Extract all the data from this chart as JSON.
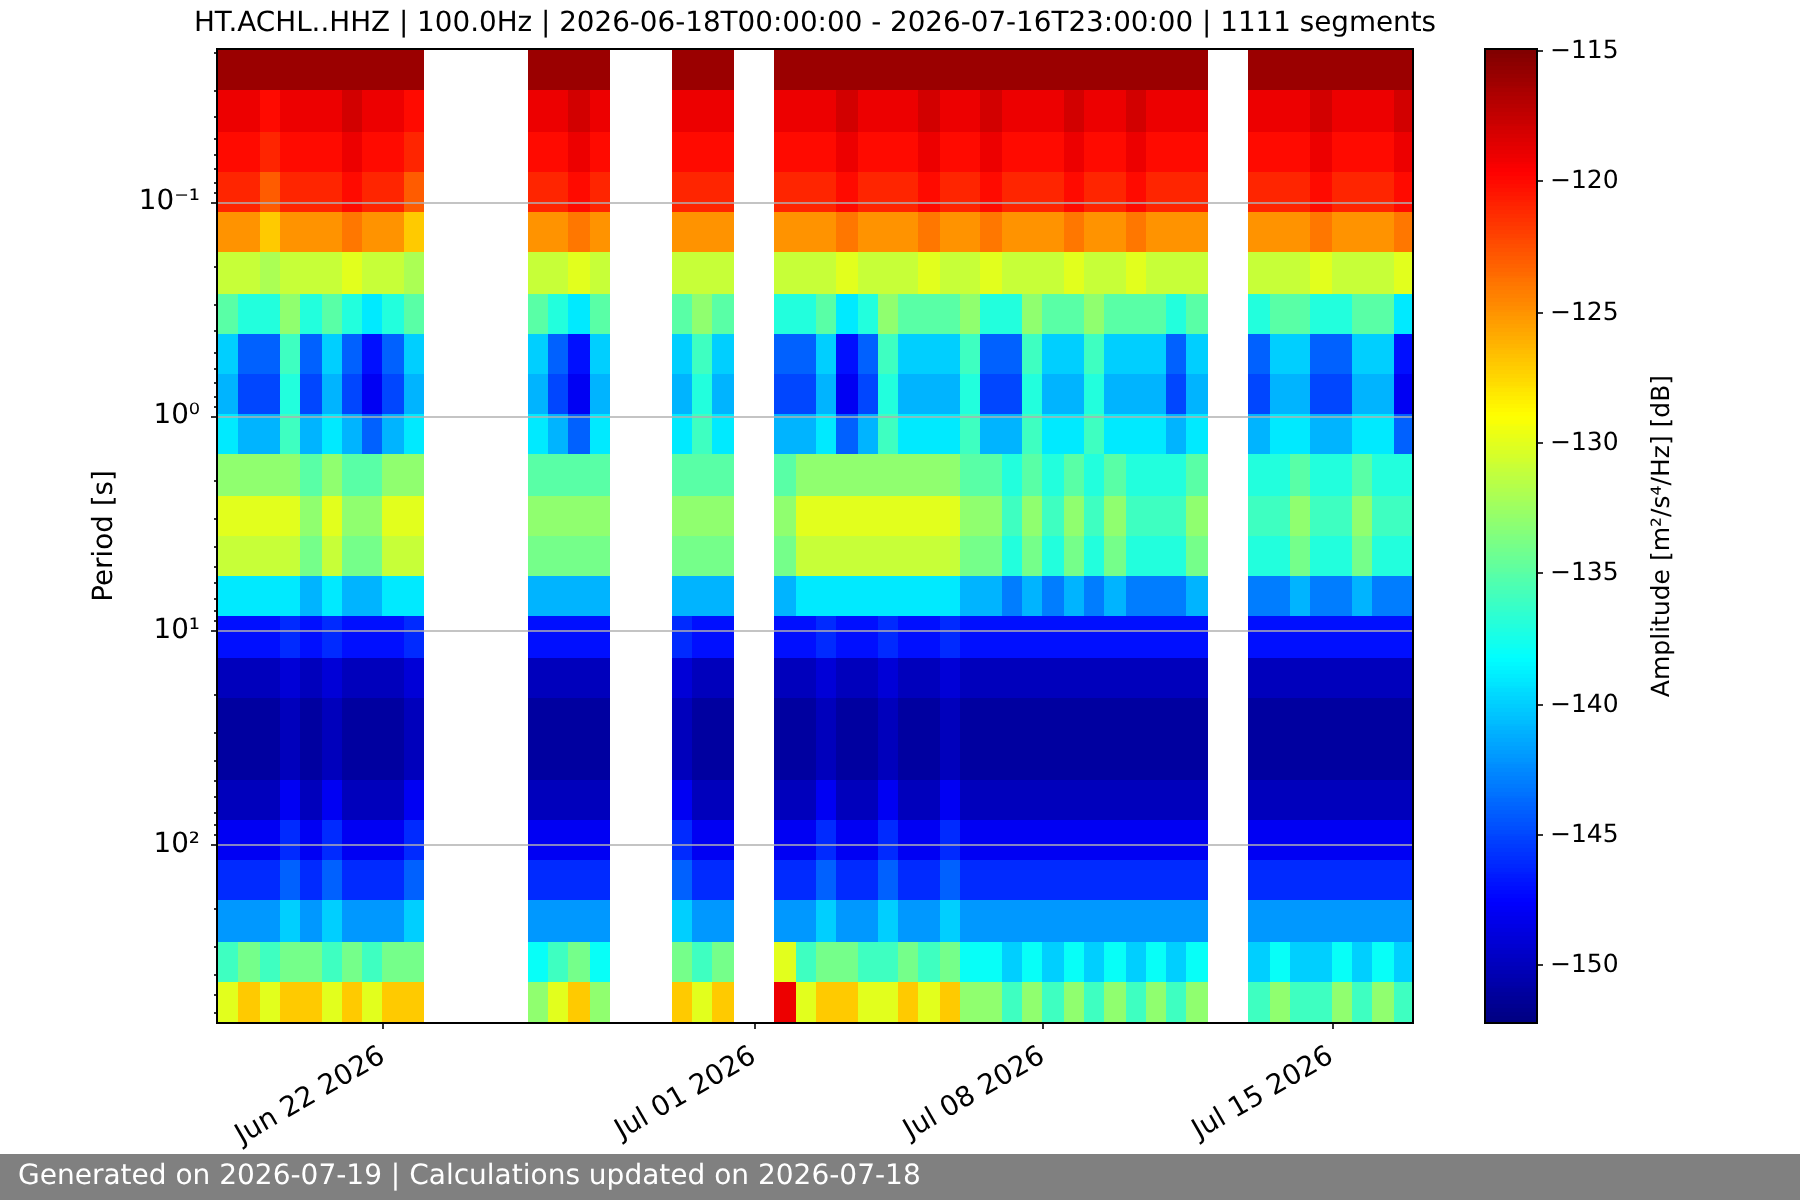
{
  "chart_data": {
    "type": "heatmap",
    "title": "HT.ACHL..HHZ | 100.0Hz | 2026-06-18T00:00:00 - 2026-07-16T23:00:00 | 1111 segments",
    "ylabel": "Period [s]",
    "clabel": "Amplitude [m²/s⁴/Hz] [dB]",
    "annotations": [
      "Generated on 2026-07-19 | Calculations updated on 2026-07-18"
    ],
    "x": [
      "2026-06-18T06:00",
      "2026-06-18T18:00",
      "2026-06-19T06:00",
      "2026-06-19T18:00",
      "2026-06-20T06:00",
      "2026-06-20T18:00",
      "2026-06-21T06:00",
      "2026-06-21T18:00",
      "2026-06-22T06:00",
      "2026-06-22T18:00",
      "2026-06-23T06:00",
      "2026-06-23T18:00",
      "2026-06-24T06:00",
      "2026-06-24T18:00",
      "2026-06-25T06:00",
      "2026-06-25T18:00",
      "2026-06-26T06:00",
      "2026-06-26T18:00",
      "2026-06-27T06:00",
      "2026-06-27T18:00",
      "2026-06-28T06:00",
      "2026-06-28T18:00",
      "2026-06-29T06:00",
      "2026-06-29T18:00",
      "2026-06-30T06:00",
      "2026-06-30T18:00",
      "2026-07-01T06:00",
      "2026-07-01T18:00",
      "2026-07-02T06:00",
      "2026-07-02T18:00",
      "2026-07-03T06:00",
      "2026-07-03T18:00",
      "2026-07-04T06:00",
      "2026-07-04T18:00",
      "2026-07-05T06:00",
      "2026-07-05T18:00",
      "2026-07-06T06:00",
      "2026-07-06T18:00",
      "2026-07-07T06:00",
      "2026-07-07T18:00",
      "2026-07-08T06:00",
      "2026-07-08T18:00",
      "2026-07-09T06:00",
      "2026-07-09T18:00",
      "2026-07-10T06:00",
      "2026-07-10T18:00",
      "2026-07-11T06:00",
      "2026-07-11T18:00",
      "2026-07-12T06:00",
      "2026-07-12T18:00",
      "2026-07-13T06:00",
      "2026-07-13T18:00",
      "2026-07-14T06:00",
      "2026-07-14T18:00",
      "2026-07-15T06:00",
      "2026-07-15T18:00",
      "2026-07-16T06:00",
      "2026-07-16T18:00"
    ],
    "cells": [
      [
        -116,
        -116,
        -116,
        -116,
        -116,
        -116,
        -116,
        -116,
        -116,
        -116,
        null,
        null,
        null,
        null,
        null,
        -116,
        -116,
        -116,
        -116,
        null,
        null,
        null,
        -116,
        -116,
        -116,
        null,
        null,
        -116,
        -116,
        -116,
        -116,
        -116,
        -116,
        -116,
        -116,
        -116,
        -116,
        -116,
        -116,
        -116,
        -116,
        -116,
        -116,
        -116,
        -116,
        -116,
        -116,
        -116,
        null,
        null,
        -116,
        -116,
        -116,
        -116,
        -116,
        -116,
        -116,
        -116
      ],
      [
        -119,
        -119,
        -120,
        -119,
        -119,
        -119,
        -118,
        -119,
        -119,
        -120,
        null,
        null,
        null,
        null,
        null,
        -119,
        -119,
        -118,
        -119,
        null,
        null,
        null,
        -119,
        -119,
        -119,
        null,
        null,
        -119,
        -119,
        -119,
        -118,
        -119,
        -119,
        -119,
        -118,
        -119,
        -119,
        -118,
        -119,
        -119,
        -119,
        -118,
        -119,
        -119,
        -118,
        -119,
        -119,
        -119,
        null,
        null,
        -119,
        -119,
        -119,
        -118,
        -119,
        -119,
        -119,
        -118
      ],
      [
        -120,
        -120,
        -121,
        -120,
        -120,
        -120,
        -119,
        -120,
        -120,
        -121,
        null,
        null,
        null,
        null,
        null,
        -120,
        -120,
        -119,
        -120,
        null,
        null,
        null,
        -120,
        -120,
        -120,
        null,
        null,
        -120,
        -120,
        -120,
        -119,
        -120,
        -120,
        -120,
        -119,
        -120,
        -120,
        -119,
        -120,
        -120,
        -120,
        -119,
        -120,
        -120,
        -119,
        -120,
        -120,
        -120,
        null,
        null,
        -120,
        -120,
        -120,
        -119,
        -120,
        -120,
        -120,
        -119
      ],
      [
        -121,
        -121,
        -123,
        -121,
        -121,
        -121,
        -120,
        -121,
        -121,
        -123,
        null,
        null,
        null,
        null,
        null,
        -121,
        -121,
        -120,
        -121,
        null,
        null,
        null,
        -121,
        -121,
        -121,
        null,
        null,
        -121,
        -121,
        -121,
        -120,
        -121,
        -121,
        -121,
        -120,
        -121,
        -121,
        -120,
        -121,
        -121,
        -121,
        -120,
        -121,
        -121,
        -120,
        -121,
        -121,
        -121,
        null,
        null,
        -121,
        -121,
        -121,
        -120,
        -121,
        -121,
        -121,
        -120
      ],
      [
        -125,
        -125,
        -127,
        -125,
        -125,
        -125,
        -124,
        -125,
        -125,
        -127,
        null,
        null,
        null,
        null,
        null,
        -125,
        -125,
        -124,
        -125,
        null,
        null,
        null,
        -125,
        -125,
        -125,
        null,
        null,
        -125,
        -125,
        -125,
        -124,
        -125,
        -125,
        -125,
        -124,
        -125,
        -125,
        -124,
        -125,
        -125,
        -125,
        -124,
        -125,
        -125,
        -124,
        -125,
        -125,
        -125,
        null,
        null,
        -125,
        -125,
        -125,
        -124,
        -125,
        -125,
        -125,
        -124
      ],
      [
        -131,
        -131,
        -132,
        -131,
        -131,
        -131,
        -130,
        -131,
        -131,
        -132,
        null,
        null,
        null,
        null,
        null,
        -131,
        -131,
        -130,
        -131,
        null,
        null,
        null,
        -131,
        -131,
        -131,
        null,
        null,
        -131,
        -131,
        -131,
        -130,
        -131,
        -131,
        -131,
        -130,
        -131,
        -131,
        -130,
        -131,
        -131,
        -131,
        -130,
        -131,
        -131,
        -130,
        -131,
        -131,
        -131,
        null,
        null,
        -131,
        -131,
        -131,
        -130,
        -131,
        -131,
        -131,
        -130
      ],
      [
        -135,
        -137,
        -137,
        -133,
        -137,
        -135,
        -137,
        -139,
        -137,
        -135,
        null,
        null,
        null,
        null,
        null,
        -135,
        -137,
        -139,
        -135,
        null,
        null,
        null,
        -135,
        -133,
        -135,
        null,
        null,
        -137,
        -137,
        -135,
        -139,
        -137,
        -133,
        -135,
        -135,
        -135,
        -133,
        -137,
        -137,
        -133,
        -135,
        -135,
        -133,
        -135,
        -135,
        -135,
        -137,
        -135,
        null,
        null,
        -137,
        -135,
        -135,
        -137,
        -137,
        -135,
        -135,
        -139
      ],
      [
        -140,
        -144,
        -144,
        -136,
        -144,
        -140,
        -144,
        -147,
        -144,
        -140,
        null,
        null,
        null,
        null,
        null,
        -140,
        -144,
        -147,
        -140,
        null,
        null,
        null,
        -140,
        -136,
        -140,
        null,
        null,
        -144,
        -144,
        -140,
        -147,
        -144,
        -136,
        -140,
        -140,
        -140,
        -136,
        -144,
        -144,
        -136,
        -140,
        -140,
        -136,
        -140,
        -140,
        -140,
        -144,
        -140,
        null,
        null,
        -144,
        -140,
        -140,
        -144,
        -144,
        -140,
        -140,
        -147
      ],
      [
        -141,
        -145,
        -145,
        -137,
        -145,
        -141,
        -145,
        -148,
        -145,
        -141,
        null,
        null,
        null,
        null,
        null,
        -141,
        -145,
        -148,
        -141,
        null,
        null,
        null,
        -141,
        -137,
        -141,
        null,
        null,
        -145,
        -145,
        -141,
        -148,
        -145,
        -137,
        -141,
        -141,
        -141,
        -137,
        -145,
        -145,
        -137,
        -141,
        -141,
        -137,
        -141,
        -141,
        -141,
        -145,
        -141,
        null,
        null,
        -145,
        -141,
        -141,
        -145,
        -145,
        -141,
        -141,
        -148
      ],
      [
        -139,
        -141,
        -141,
        -136,
        -141,
        -139,
        -141,
        -144,
        -141,
        -139,
        null,
        null,
        null,
        null,
        null,
        -139,
        -141,
        -144,
        -139,
        null,
        null,
        null,
        -139,
        -136,
        -139,
        null,
        null,
        -141,
        -141,
        -139,
        -144,
        -141,
        -136,
        -139,
        -139,
        -139,
        -136,
        -141,
        -141,
        -136,
        -139,
        -139,
        -136,
        -139,
        -139,
        -139,
        -141,
        -139,
        null,
        null,
        -141,
        -139,
        -139,
        -141,
        -141,
        -139,
        -139,
        -144
      ],
      [
        -133,
        -133,
        -133,
        -133,
        -135,
        -133,
        -135,
        -135,
        -133,
        -133,
        null,
        null,
        null,
        null,
        null,
        -135,
        -135,
        -135,
        -135,
        null,
        null,
        null,
        -135,
        -135,
        -135,
        null,
        null,
        -135,
        -133,
        -133,
        -133,
        -133,
        -133,
        -133,
        -133,
        -133,
        -135,
        -135,
        -137,
        -135,
        -137,
        -135,
        -137,
        -135,
        -137,
        -137,
        -137,
        -135,
        null,
        null,
        -137,
        -137,
        -135,
        -137,
        -137,
        -135,
        -137,
        -137
      ],
      [
        -130,
        -130,
        -130,
        -130,
        -133,
        -130,
        -133,
        -133,
        -130,
        -130,
        null,
        null,
        null,
        null,
        null,
        -133,
        -133,
        -133,
        -133,
        null,
        null,
        null,
        -133,
        -133,
        -133,
        null,
        null,
        -133,
        -130,
        -130,
        -130,
        -130,
        -130,
        -130,
        -130,
        -130,
        -133,
        -133,
        -136,
        -133,
        -136,
        -133,
        -136,
        -133,
        -136,
        -136,
        -136,
        -133,
        null,
        null,
        -136,
        -136,
        -133,
        -136,
        -136,
        -133,
        -136,
        -136
      ],
      [
        -131,
        -131,
        -131,
        -131,
        -134,
        -131,
        -134,
        -134,
        -131,
        -131,
        null,
        null,
        null,
        null,
        null,
        -134,
        -134,
        -134,
        -134,
        null,
        null,
        null,
        -134,
        -134,
        -134,
        null,
        null,
        -134,
        -131,
        -131,
        -131,
        -131,
        -131,
        -131,
        -131,
        -131,
        -134,
        -134,
        -137,
        -134,
        -137,
        -134,
        -137,
        -134,
        -137,
        -137,
        -137,
        -134,
        null,
        null,
        -137,
        -137,
        -134,
        -137,
        -137,
        -134,
        -137,
        -137
      ],
      [
        -139,
        -139,
        -139,
        -139,
        -141,
        -139,
        -141,
        -141,
        -139,
        -139,
        null,
        null,
        null,
        null,
        null,
        -141,
        -141,
        -141,
        -141,
        null,
        null,
        null,
        -141,
        -141,
        -141,
        null,
        null,
        -141,
        -139,
        -139,
        -139,
        -139,
        -139,
        -139,
        -139,
        -139,
        -141,
        -141,
        -143,
        -141,
        -143,
        -141,
        -143,
        -141,
        -143,
        -143,
        -143,
        -141,
        null,
        null,
        -143,
        -143,
        -141,
        -143,
        -143,
        -141,
        -143,
        -143
      ],
      [
        -147,
        -147,
        -147,
        -146,
        -147,
        -146,
        -147,
        -147,
        -147,
        -146,
        null,
        null,
        null,
        null,
        null,
        -147,
        -147,
        -147,
        -147,
        null,
        null,
        null,
        -146,
        -147,
        -147,
        null,
        null,
        -147,
        -147,
        -146,
        -147,
        -147,
        -146,
        -147,
        -147,
        -146,
        -147,
        -147,
        -147,
        -147,
        -147,
        -147,
        -147,
        -147,
        -147,
        -147,
        -147,
        -147,
        null,
        null,
        -147,
        -147,
        -147,
        -147,
        -147,
        -147,
        -147,
        -147
      ],
      [
        -150,
        -150,
        -150,
        -149,
        -150,
        -149,
        -150,
        -150,
        -150,
        -149,
        null,
        null,
        null,
        null,
        null,
        -150,
        -150,
        -150,
        -150,
        null,
        null,
        null,
        -149,
        -150,
        -150,
        null,
        null,
        -150,
        -150,
        -149,
        -150,
        -150,
        -149,
        -150,
        -150,
        -149,
        -150,
        -150,
        -150,
        -150,
        -150,
        -150,
        -150,
        -150,
        -150,
        -150,
        -150,
        -150,
        null,
        null,
        -150,
        -150,
        -150,
        -150,
        -150,
        -150,
        -150,
        -150
      ],
      [
        -151,
        -151,
        -151,
        -150,
        -151,
        -150,
        -151,
        -151,
        -151,
        -150,
        null,
        null,
        null,
        null,
        null,
        -151,
        -151,
        -151,
        -151,
        null,
        null,
        null,
        -150,
        -151,
        -151,
        null,
        null,
        -151,
        -151,
        -150,
        -151,
        -151,
        -150,
        -151,
        -151,
        -150,
        -151,
        -151,
        -151,
        -151,
        -151,
        -151,
        -151,
        -151,
        -151,
        -151,
        -151,
        -151,
        null,
        null,
        -151,
        -151,
        -151,
        -151,
        -151,
        -151,
        -151,
        -151
      ],
      [
        -151,
        -151,
        -151,
        -150,
        -151,
        -150,
        -151,
        -151,
        -151,
        -150,
        null,
        null,
        null,
        null,
        null,
        -151,
        -151,
        -151,
        -151,
        null,
        null,
        null,
        -150,
        -151,
        -151,
        null,
        null,
        -151,
        -151,
        -150,
        -151,
        -151,
        -150,
        -151,
        -151,
        -150,
        -151,
        -151,
        -151,
        -151,
        -151,
        -151,
        -151,
        -151,
        -151,
        -151,
        -151,
        -151,
        null,
        null,
        -151,
        -151,
        -151,
        -151,
        -151,
        -151,
        -151,
        -151
      ],
      [
        -150,
        -150,
        -150,
        -148,
        -150,
        -148,
        -150,
        -150,
        -150,
        -148,
        null,
        null,
        null,
        null,
        null,
        -150,
        -150,
        -150,
        -150,
        null,
        null,
        null,
        -148,
        -150,
        -150,
        null,
        null,
        -150,
        -150,
        -148,
        -150,
        -150,
        -148,
        -150,
        -150,
        -148,
        -150,
        -150,
        -150,
        -150,
        -150,
        -150,
        -150,
        -150,
        -150,
        -150,
        -150,
        -150,
        null,
        null,
        -150,
        -150,
        -150,
        -150,
        -150,
        -150,
        -150,
        -150
      ],
      [
        -148,
        -148,
        -148,
        -146,
        -148,
        -146,
        -148,
        -148,
        -148,
        -146,
        null,
        null,
        null,
        null,
        null,
        -148,
        -148,
        -148,
        -148,
        null,
        null,
        null,
        -146,
        -148,
        -148,
        null,
        null,
        -148,
        -148,
        -146,
        -148,
        -148,
        -146,
        -148,
        -148,
        -146,
        -148,
        -148,
        -148,
        -148,
        -148,
        -148,
        -148,
        -148,
        -148,
        -148,
        -148,
        -148,
        null,
        null,
        -148,
        -148,
        -148,
        -148,
        -148,
        -148,
        -148,
        -148
      ],
      [
        -146,
        -146,
        -146,
        -144,
        -146,
        -144,
        -146,
        -146,
        -146,
        -144,
        null,
        null,
        null,
        null,
        null,
        -146,
        -146,
        -146,
        -146,
        null,
        null,
        null,
        -144,
        -146,
        -146,
        null,
        null,
        -146,
        -146,
        -144,
        -146,
        -146,
        -144,
        -146,
        -146,
        -144,
        -146,
        -146,
        -146,
        -146,
        -146,
        -146,
        -146,
        -146,
        -146,
        -146,
        -146,
        -146,
        null,
        null,
        -146,
        -146,
        -146,
        -146,
        -146,
        -146,
        -146,
        -146
      ],
      [
        -142,
        -142,
        -142,
        -140,
        -142,
        -140,
        -142,
        -142,
        -142,
        -140,
        null,
        null,
        null,
        null,
        null,
        -142,
        -142,
        -142,
        -142,
        null,
        null,
        null,
        -140,
        -142,
        -142,
        null,
        null,
        -142,
        -142,
        -140,
        -142,
        -142,
        -140,
        -142,
        -142,
        -140,
        -142,
        -142,
        -142,
        -142,
        -142,
        -142,
        -142,
        -142,
        -142,
        -142,
        -142,
        -142,
        null,
        null,
        -142,
        -142,
        -142,
        -142,
        -142,
        -142,
        -142,
        -142
      ],
      [
        -136,
        -134,
        -136,
        -134,
        -134,
        -136,
        -134,
        -136,
        -134,
        -134,
        null,
        null,
        null,
        null,
        null,
        -138,
        -136,
        -134,
        -138,
        null,
        null,
        null,
        -134,
        -136,
        -134,
        null,
        null,
        -130,
        -136,
        -134,
        -134,
        -136,
        -136,
        -134,
        -136,
        -134,
        -138,
        -138,
        -140,
        -138,
        -140,
        -138,
        -140,
        -138,
        -140,
        -138,
        -140,
        -138,
        null,
        null,
        -140,
        -138,
        -140,
        -140,
        -138,
        -140,
        -138,
        -140
      ],
      [
        -130,
        -127,
        -130,
        -127,
        -127,
        -130,
        -127,
        -130,
        -127,
        -127,
        null,
        null,
        null,
        null,
        null,
        -133,
        -130,
        -127,
        -133,
        null,
        null,
        null,
        -127,
        -130,
        -127,
        null,
        null,
        -119,
        -130,
        -127,
        -127,
        -130,
        -130,
        -127,
        -130,
        -127,
        -133,
        -133,
        -136,
        -133,
        -136,
        -133,
        -136,
        -133,
        -136,
        -133,
        -136,
        -133,
        null,
        null,
        -136,
        -133,
        -136,
        -136,
        -133,
        -136,
        -133,
        -136
      ]
    ],
    "xlim": [
      "2026-06-18T00:00",
      "2026-07-16T23:00"
    ],
    "xticks": [
      {
        "value": "2026-06-22",
        "label": "Jun 22 2026"
      },
      {
        "value": "2026-07-01",
        "label": "Jul 01 2026"
      },
      {
        "value": "2026-07-08",
        "label": "Jul 08 2026"
      },
      {
        "value": "2026-07-15",
        "label": "Jul 15 2026"
      }
    ],
    "ylim": [
      675,
      0.0195
    ],
    "yticks": [
      {
        "value": 0.02,
        "label": null
      },
      {
        "value": 0.03,
        "label": null
      },
      {
        "value": 0.04,
        "label": null
      },
      {
        "value": 0.05,
        "label": null
      },
      {
        "value": 0.06,
        "label": null
      },
      {
        "value": 0.07,
        "label": null
      },
      {
        "value": 0.08,
        "label": null
      },
      {
        "value": 0.09,
        "label": null
      },
      {
        "value": 0.1,
        "label": "10⁻¹"
      },
      {
        "value": 0.2,
        "label": null
      },
      {
        "value": 0.3,
        "label": null
      },
      {
        "value": 0.4,
        "label": null
      },
      {
        "value": 0.5,
        "label": null
      },
      {
        "value": 0.6,
        "label": null
      },
      {
        "value": 0.7,
        "label": null
      },
      {
        "value": 0.8,
        "label": null
      },
      {
        "value": 0.9,
        "label": null
      },
      {
        "value": 1,
        "label": "10⁰"
      },
      {
        "value": 2,
        "label": null
      },
      {
        "value": 3,
        "label": null
      },
      {
        "value": 4,
        "label": null
      },
      {
        "value": 5,
        "label": null
      },
      {
        "value": 6,
        "label": null
      },
      {
        "value": 7,
        "label": null
      },
      {
        "value": 8,
        "label": null
      },
      {
        "value": 9,
        "label": null
      },
      {
        "value": 10,
        "label": "10¹"
      },
      {
        "value": 20,
        "label": null
      },
      {
        "value": 30,
        "label": null
      },
      {
        "value": 40,
        "label": null
      },
      {
        "value": 50,
        "label": null
      },
      {
        "value": 60,
        "label": null
      },
      {
        "value": 70,
        "label": null
      },
      {
        "value": 80,
        "label": null
      },
      {
        "value": 90,
        "label": null
      },
      {
        "value": 100,
        "label": "10²"
      },
      {
        "value": 200,
        "label": null
      },
      {
        "value": 300,
        "label": null
      },
      {
        "value": 400,
        "label": null
      },
      {
        "value": 500,
        "label": null
      },
      {
        "value": 600,
        "label": null
      }
    ],
    "log": "y",
    "clim": [
      -152.2,
      -115
    ],
    "cticks": [
      {
        "value": -150,
        "label": "−150"
      },
      {
        "value": -145,
        "label": "−145"
      },
      {
        "value": -140,
        "label": "−140"
      },
      {
        "value": -135,
        "label": "−135"
      },
      {
        "value": -130,
        "label": "−130"
      },
      {
        "value": -125,
        "label": "−125"
      },
      {
        "value": -120,
        "label": "−120"
      },
      {
        "value": -115,
        "label": "−115"
      }
    ],
    "grid": "y"
  }
}
